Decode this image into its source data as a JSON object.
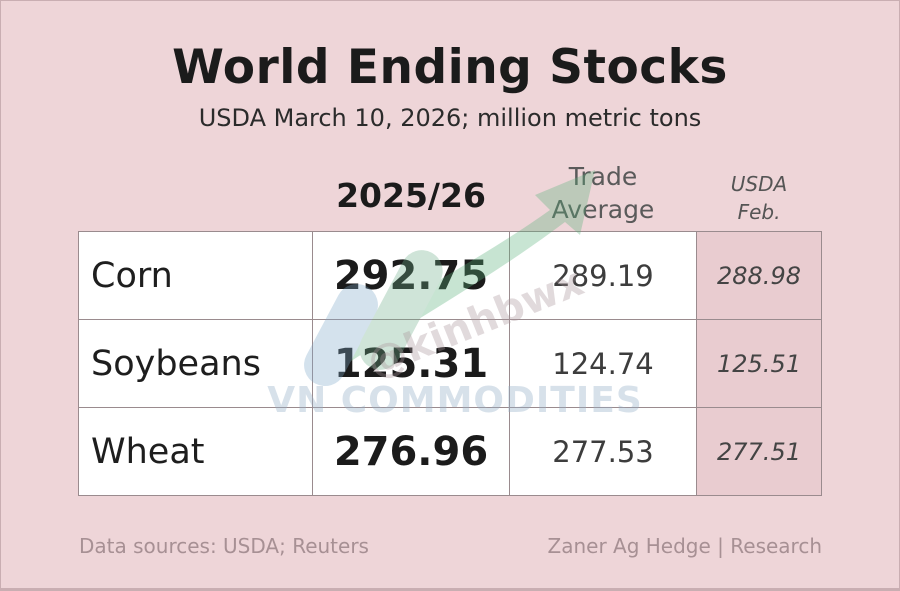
{
  "title": "World Ending Stocks",
  "subtitle": "USDA March 10, 2026; million metric tons",
  "columns": {
    "main": "2025/26",
    "trade_line1": "Trade",
    "trade_line2": "Average",
    "feb_line1": "USDA",
    "feb_line2": "Feb."
  },
  "rows": [
    {
      "name": "Corn",
      "main": "292.75",
      "trade": "289.19",
      "feb": "288.98"
    },
    {
      "name": "Soybeans",
      "main": "125.31",
      "trade": "124.74",
      "feb": "125.51"
    },
    {
      "name": "Wheat",
      "main": "276.96",
      "trade": "277.53",
      "feb": "277.51"
    }
  ],
  "watermark": {
    "text": "VN COMMODITIES",
    "handle": "@kinhbwx"
  },
  "footer": {
    "sources": "Data sources: USDA; Reuters",
    "credit": "Zaner Ag Hedge | Research"
  },
  "colors": {
    "background": "#eed5d8",
    "feb_column": "#e9ccd0"
  }
}
